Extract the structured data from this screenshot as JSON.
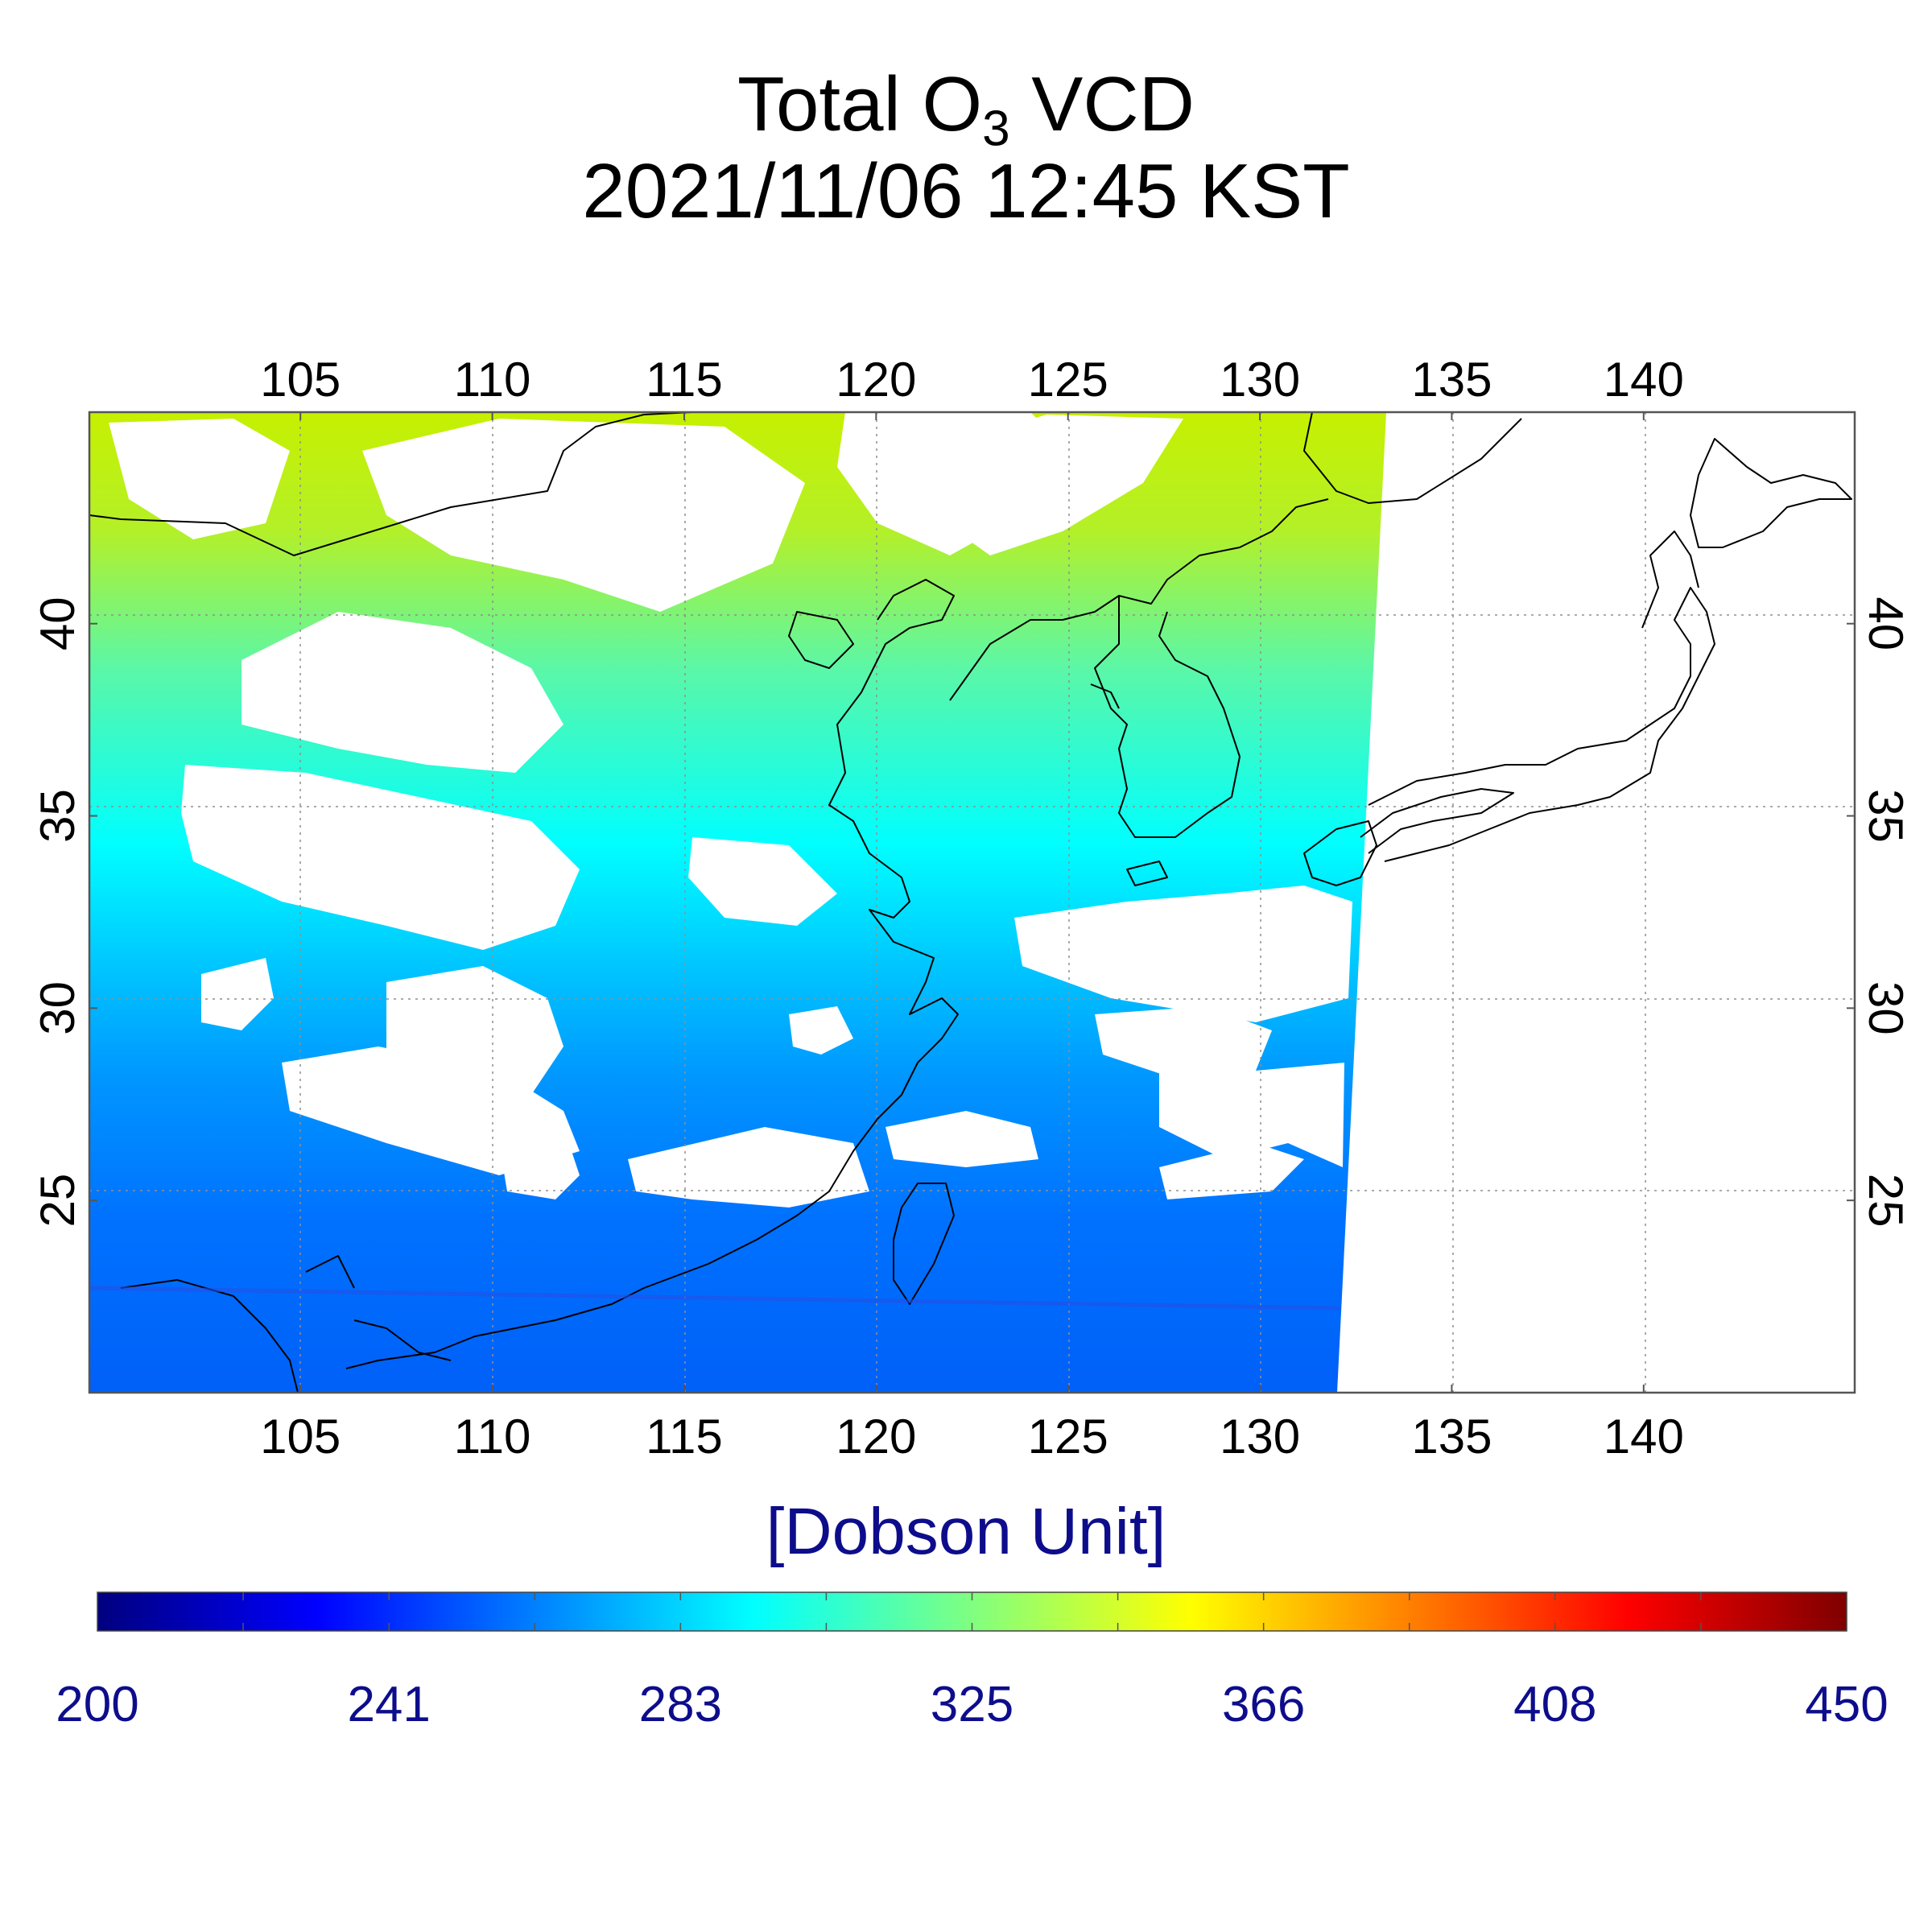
{
  "title": {
    "line1_prefix": "Total O",
    "line1_sub": "3",
    "line1_suffix": " VCD",
    "line2": "2021/11/06 12:45 KST"
  },
  "map": {
    "lon_range": [
      99.5,
      145.5
    ],
    "lat_range": [
      20,
      45.5
    ],
    "lon_ticks": [
      105,
      110,
      115,
      120,
      125,
      130,
      135,
      140
    ],
    "lat_ticks": [
      25,
      30,
      35,
      40
    ],
    "grid": true,
    "data_swath_east_edge_lon": [
      132.0,
      133.3
    ],
    "regions": [
      {
        "region": "north",
        "value_du": 350
      },
      {
        "region": "central",
        "value_du": 300
      },
      {
        "region": "south",
        "value_du": 255
      }
    ]
  },
  "colorbar": {
    "label": "[Dobson Unit]",
    "min": 200,
    "max": 450,
    "ticks": [
      "200",
      "241",
      "283",
      "325",
      "366",
      "408",
      "450"
    ],
    "colors": [
      "#00007f",
      "#0000ff",
      "#0080ff",
      "#00ffff",
      "#80ff80",
      "#ffff00",
      "#ff8000",
      "#ff0000",
      "#7f0000"
    ]
  }
}
